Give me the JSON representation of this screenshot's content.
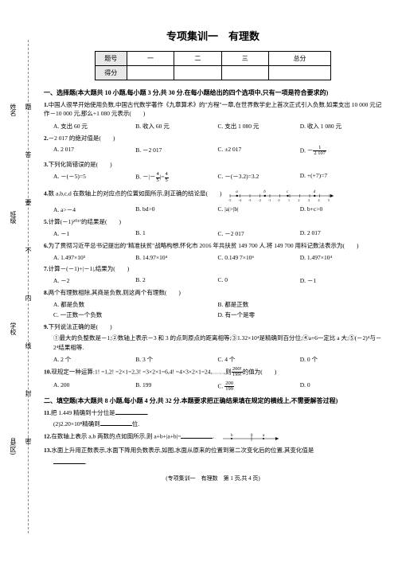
{
  "title": "专项集训一　有理数",
  "scoreTable": {
    "row1": [
      "题号",
      "一",
      "二",
      "三",
      "总分"
    ],
    "row2Label": "得分"
  },
  "sectionA": "一、选择题(本大题共 10 小题,每小题 3 分,共 30 分.在每小题给出的四个选项中,只有一项是符合要求的)",
  "q1": {
    "num": "1.",
    "text": "中国人很早开始使用负数,中国古代数学著作《九章算术》的\"方程\"一章,在世界数学史上首次正式引入负数.如果支出 10 000 元记作－10 000 元,那么+1 080 元表示(　　)",
    "opts": [
      "A. 支出 60 元",
      "B. 收入 60 元",
      "C. 支出 1 080 元",
      "D. 收入 1 080 元"
    ]
  },
  "q2": {
    "num": "2.",
    "text": "－2 017 的绝对值是(　　)",
    "opts": [
      "A. 2 017",
      "B. －2 017",
      "C. ±2 017",
      "D. －"
    ],
    "dFrac": {
      "n": "1",
      "d": "2 107"
    }
  },
  "q3": {
    "num": "3.",
    "text": "下列化简错误的是(　　)",
    "opts": [
      "A. －(－5)=5",
      "B. －|－",
      "C. －(－3.2)=3.2",
      "D. +(+7)=7"
    ],
    "bFrac": {
      "n": "4",
      "d": "5"
    },
    "bSuffix": "|=",
    "bFrac2": {
      "n": "4",
      "d": "5"
    }
  },
  "q4": {
    "num": "4.",
    "text": "数 a,b,c,d 在数轴上的对应点的位置如图所示,则正确的结论是(　　)",
    "opts": [
      "A. a>－4",
      "B. bd>0",
      "C. |a|>|b|",
      "D. b+c>0"
    ]
  },
  "q5": {
    "num": "5.",
    "text": "计算(－1)²⁰¹⁷的结果是(　　)",
    "opts": [
      "A. －1",
      "B. 1",
      "C. －2 017",
      "D. 2 017"
    ]
  },
  "q6": {
    "num": "6.",
    "text": "为了贯彻习近平总书记提出的\"精准扶贫\"战略构想,怀化市 2016 年共扶贫 149 700 人.将 149 700 用科记数法表示为(　　)",
    "opts": [
      "A. 1.497×10⁵",
      "B. 14.97×10⁴",
      "C. 0.149 7×10⁶",
      "D. 1.497×10⁴"
    ]
  },
  "q7": {
    "num": "7.",
    "text": "计算－(－1)+|－1|,结果为(　　)",
    "opts": [
      "A. －2",
      "B. 2",
      "C. 0",
      "D. －1"
    ]
  },
  "q8": {
    "num": "8.",
    "text": "两个有理数相除,其商是负数,则这两个有理数(　　)",
    "opts": [
      "A. 都是负数",
      "B. 都是正数",
      "C. 一正数一个负数",
      "D. 有一个是零"
    ]
  },
  "q9": {
    "num": "9.",
    "text": "下列说法正确的是(　　)",
    "sub": "①最大的负整数是－1;②数轴上表示－3 和 3 的点到原点的距离相等;③1.32×10⁴是精确到百分位;④a+6一定比 a 大;⑤(－2)⁴与－2⁴结果相等.",
    "opts": [
      "A. 2 个",
      "B. 3 个",
      "C. 4 个",
      "D. 0 个"
    ]
  },
  "q10": {
    "num": "10.",
    "text": "现规定一种运算:1! =1,2! =2×1=2,3! =3×2×1=6,4! =4×3×2×1=24,……,则",
    "frac": {
      "n": "200!",
      "d": "199!"
    },
    "suffix": "的值为(　　)",
    "opts": [
      "A. 200",
      "B. 199",
      "C. ",
      "D. 0"
    ],
    "cFrac": {
      "n": "200",
      "d": "199"
    }
  },
  "sectionB": "二、填空题(本大题共 8 小题,每小题 4 分,共 32 分.本题要求把正确结果填在规定的横线上,不需要解答过程)",
  "q11": {
    "num": "11.",
    "text": "把 1.449 精确到十分位是",
    "text2": "(2)2.20×10⁸精确到",
    "suffix2": "位."
  },
  "q12": {
    "num": "12.",
    "text": "在数轴上表示 a,b 两数的点如图所示,则 a+b+|a+b|="
  },
  "q13": {
    "num": "13.",
    "text": "水面上升用正数表示,水面下降用负数表示,如图,水面从原来的位置到第二次变化后的位置,其变化值是"
  },
  "footer": "(专项集训一　有理数　第 1 页,共 4 页)",
  "leftLabels": {
    "name": "姓名",
    "class": "班级",
    "school": "学校",
    "county": "县(区)"
  },
  "cutText": "题　　答　　要　　不　　内　　线　　封　　密",
  "numberLine": {
    "xmin": -5,
    "xmax": 5,
    "ticks": [
      -5,
      -4,
      -3,
      -2,
      -1,
      0,
      1,
      2,
      3,
      4,
      5
    ],
    "dots": [
      {
        "x": -4.3,
        "l": "a"
      },
      {
        "x": -1.5,
        "l": "b"
      },
      {
        "x": 0.8,
        "l": "c"
      },
      {
        "x": 3.5,
        "l": "d"
      }
    ]
  },
  "numberLine2": {
    "xmin": -1,
    "xmax": 4,
    "dots": [
      {
        "x": 0,
        "l": "b"
      },
      {
        "x": 2.5,
        "l": "0"
      },
      {
        "x": 3.2,
        "l": "a"
      }
    ]
  }
}
